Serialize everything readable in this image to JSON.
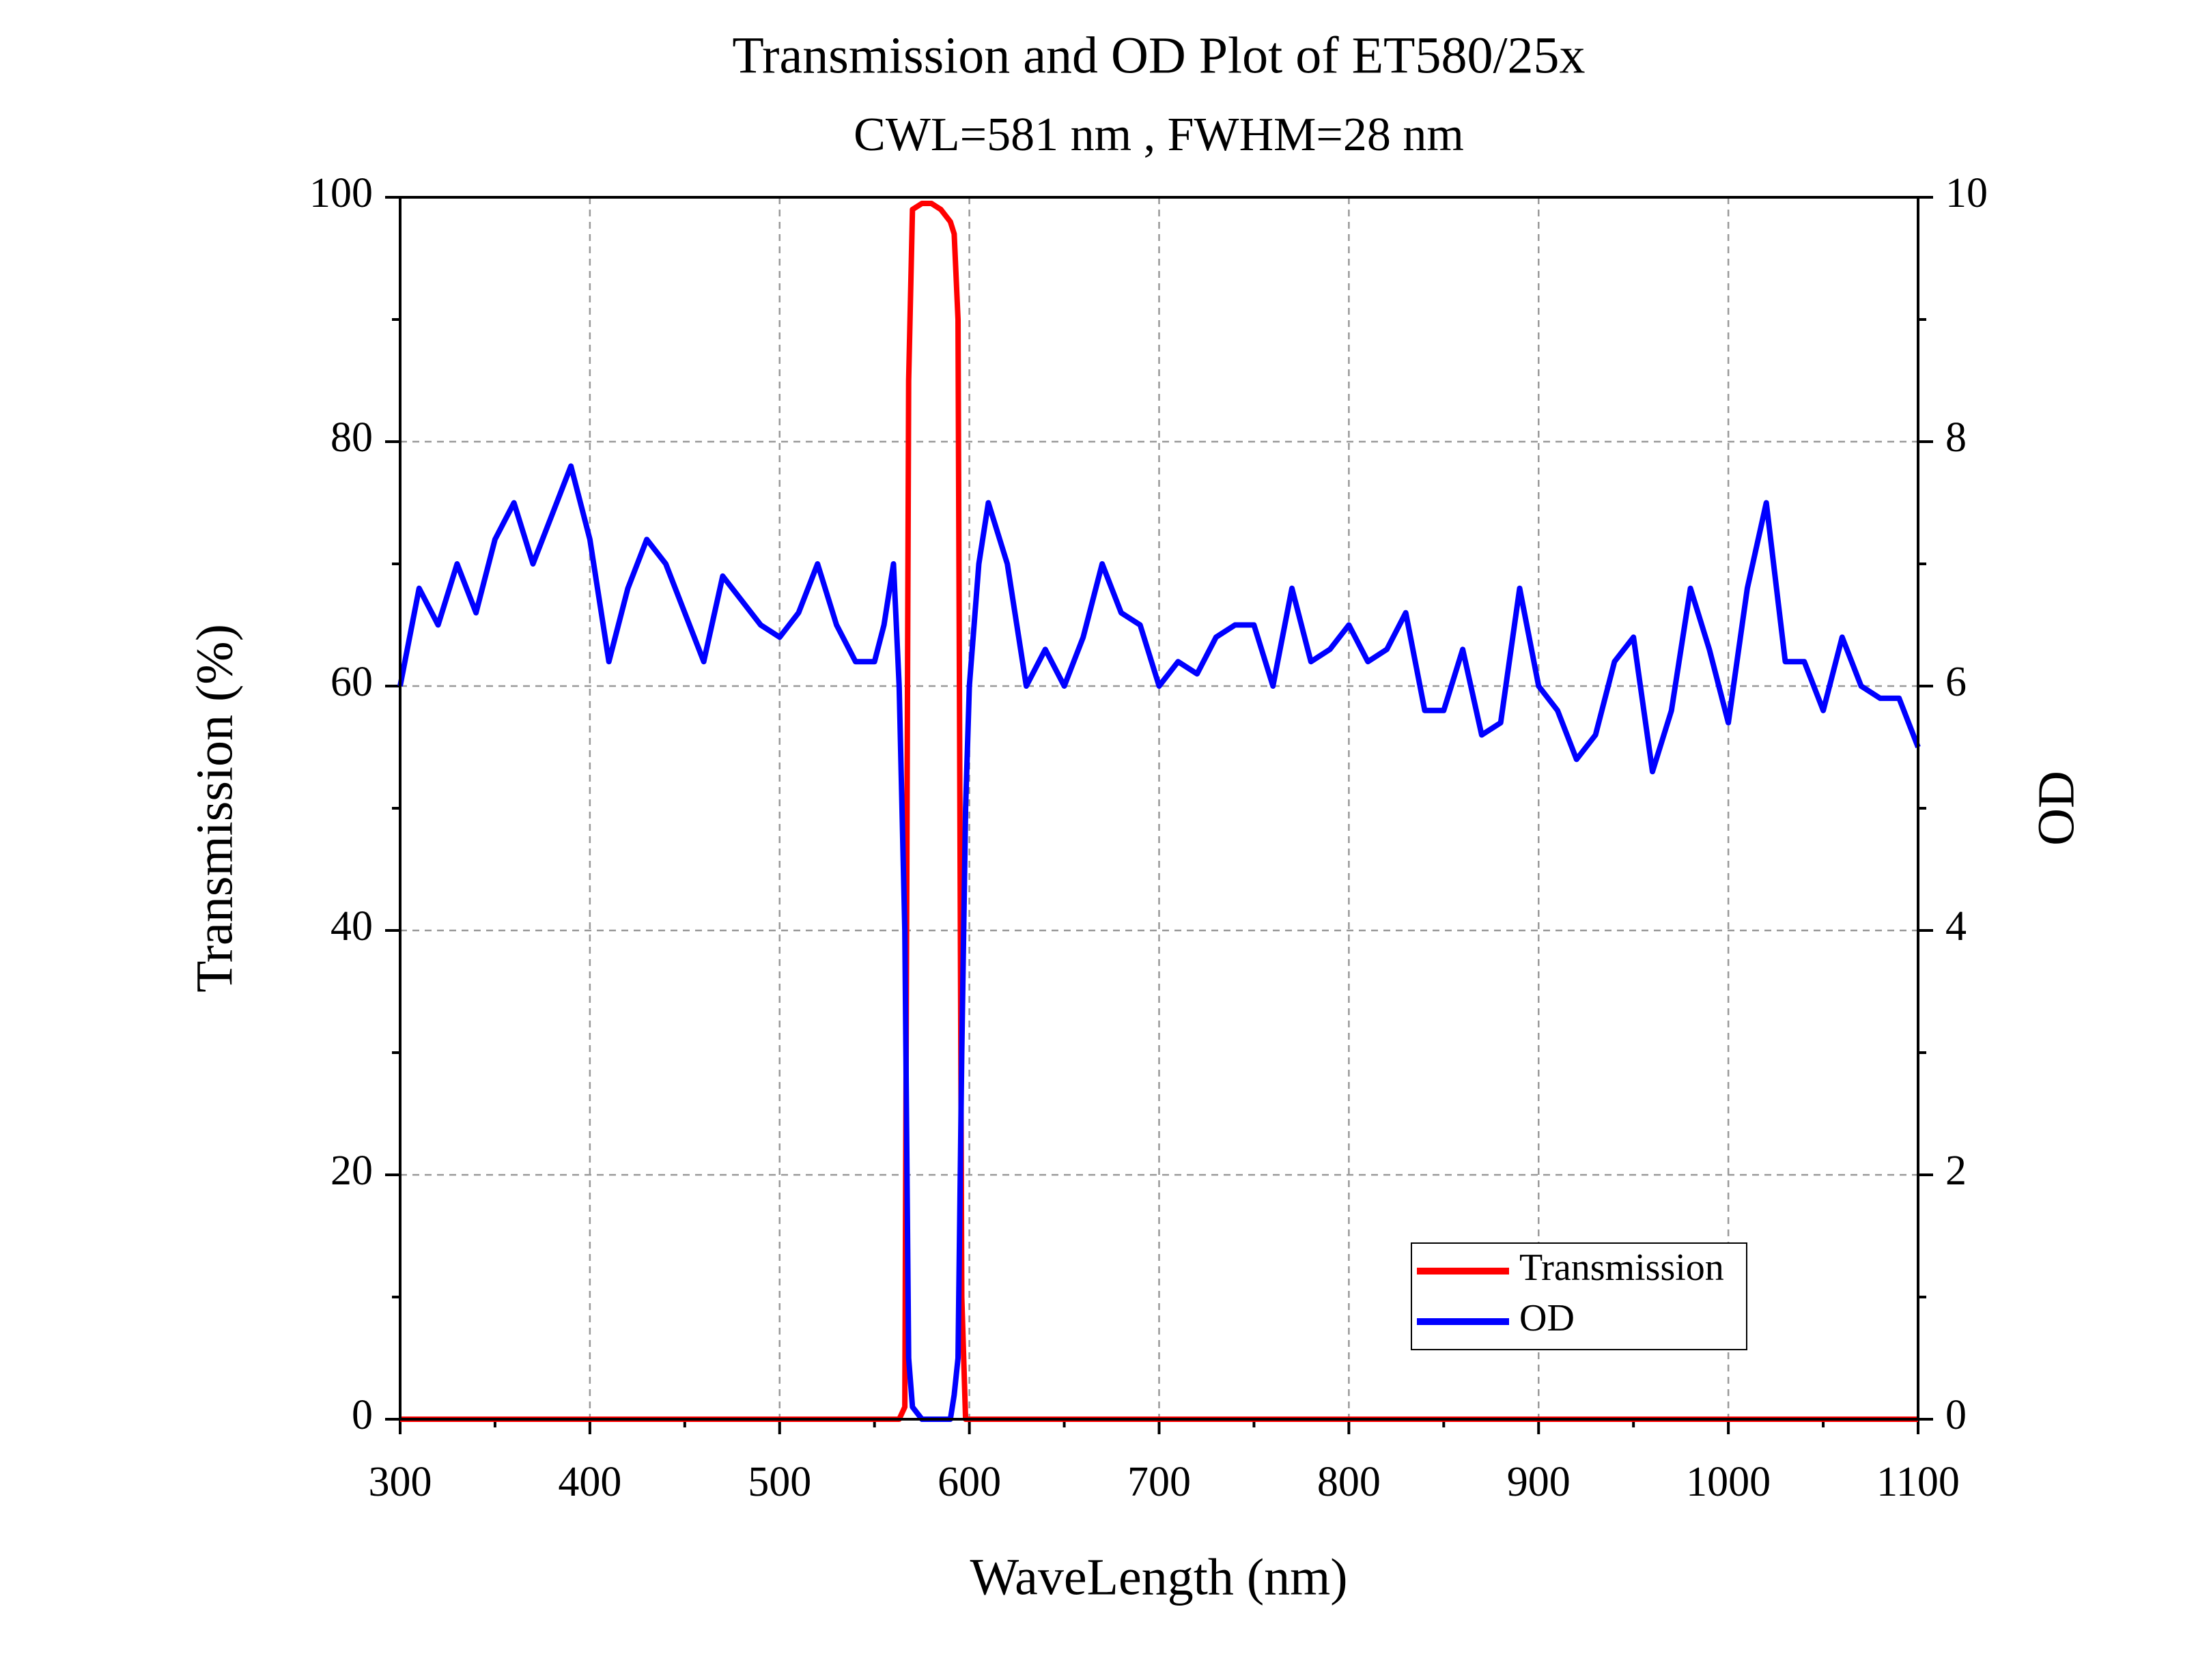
{
  "chart_data": {
    "type": "line",
    "title": "Transmission and OD Plot of ET580/25x",
    "subtitle": "CWL=581 nm , FWHM=28 nm",
    "xlabel": "WaveLength (nm)",
    "ylabel": "Transmission (%)",
    "y2label": "OD",
    "x": [
      300,
      310,
      320,
      330,
      340,
      350,
      360,
      370,
      380,
      390,
      400,
      410,
      420,
      430,
      440,
      450,
      460,
      470,
      480,
      490,
      500,
      510,
      520,
      530,
      540,
      550,
      555,
      560,
      563,
      566,
      568,
      570,
      575,
      580,
      585,
      590,
      592,
      594,
      596,
      598,
      600,
      605,
      610,
      620,
      630,
      640,
      650,
      660,
      670,
      680,
      690,
      700,
      710,
      720,
      730,
      740,
      750,
      760,
      770,
      780,
      790,
      800,
      810,
      820,
      830,
      840,
      850,
      860,
      870,
      880,
      890,
      900,
      910,
      920,
      930,
      940,
      950,
      960,
      970,
      980,
      990,
      1000,
      1010,
      1020,
      1030,
      1040,
      1050,
      1060,
      1070,
      1080,
      1090,
      1100
    ],
    "series": [
      {
        "name": "Transmission",
        "color": "#ff0000",
        "values": [
          0,
          0,
          0,
          0,
          0,
          0,
          0,
          0,
          0,
          0,
          0,
          0,
          0,
          0,
          0,
          0,
          0,
          0,
          0,
          0,
          0,
          0,
          0,
          0,
          0,
          0,
          0,
          0,
          0,
          1,
          85,
          99,
          99.5,
          99.5,
          99,
          98,
          97,
          90,
          10,
          0,
          0,
          0,
          0,
          0,
          0,
          0,
          0,
          0,
          0,
          0,
          0,
          0,
          0,
          0,
          0,
          0,
          0,
          0,
          0,
          0,
          0,
          0,
          0,
          0,
          0,
          0,
          0,
          0,
          0,
          0,
          0,
          0,
          0,
          0,
          0,
          0,
          0,
          0,
          0,
          0,
          0,
          0,
          0,
          0,
          0,
          0,
          0,
          0,
          0,
          0,
          0,
          0
        ]
      },
      {
        "name": "OD",
        "color": "#0000ff",
        "axis": "y2",
        "values": [
          6.0,
          6.8,
          6.5,
          7.0,
          6.6,
          7.2,
          7.5,
          7.0,
          7.4,
          7.8,
          7.2,
          6.2,
          6.8,
          7.2,
          7.0,
          6.6,
          6.2,
          6.9,
          6.7,
          6.5,
          6.4,
          6.6,
          7.0,
          6.5,
          6.2,
          6.2,
          6.5,
          7.0,
          6.0,
          4.0,
          0.5,
          0.1,
          0,
          0,
          0,
          0,
          0.2,
          0.5,
          3.0,
          5.0,
          6.0,
          7.0,
          7.5,
          7.0,
          6.0,
          6.3,
          6.0,
          6.4,
          7.0,
          6.6,
          6.5,
          6.0,
          6.2,
          6.1,
          6.4,
          6.5,
          6.5,
          6.0,
          6.8,
          6.2,
          6.3,
          6.5,
          6.2,
          6.3,
          6.6,
          5.8,
          5.8,
          6.3,
          5.6,
          5.7,
          6.8,
          6.0,
          5.8,
          5.4,
          5.6,
          6.2,
          6.4,
          5.3,
          5.8,
          6.8,
          6.3,
          5.7,
          6.8,
          7.5,
          6.2,
          6.2,
          5.8,
          6.4,
          6.0,
          5.9,
          5.9,
          5.5
        ]
      }
    ],
    "xlim": [
      300,
      1100
    ],
    "xticks": [
      300,
      400,
      500,
      600,
      700,
      800,
      900,
      1000,
      1100
    ],
    "xminorticks": [
      350,
      450,
      550,
      650,
      750,
      850,
      950,
      1050
    ],
    "ylim": [
      0,
      100
    ],
    "yticks": [
      0,
      20,
      40,
      60,
      80,
      100
    ],
    "yminorticks": [
      10,
      30,
      50,
      70,
      90
    ],
    "y2lim": [
      0,
      10
    ],
    "y2ticks": [
      0,
      2,
      4,
      6,
      8,
      10
    ],
    "y2minorticks": [
      1,
      3,
      5,
      7,
      9
    ],
    "grid": true,
    "legend": "lower right"
  }
}
